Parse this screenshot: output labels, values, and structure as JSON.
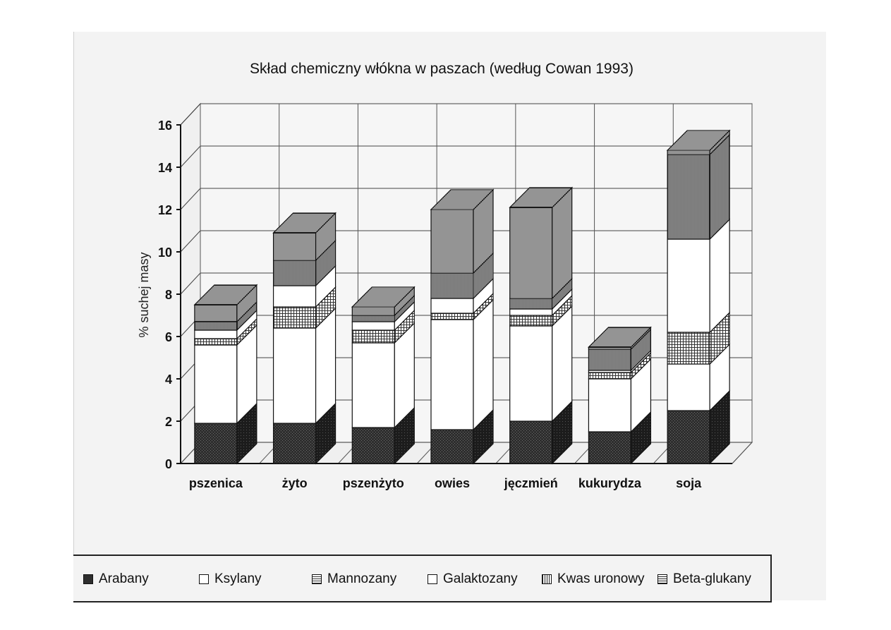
{
  "chart_data": {
    "type": "bar",
    "stacked": true,
    "three_d": true,
    "title": "Skład chemiczny włókna w paszach (według Cowan 1993)",
    "xlabel": "",
    "ylabel": "% suchej masy",
    "ylim": [
      0,
      16
    ],
    "yticks": [
      "0",
      "2",
      "4",
      "6",
      "8",
      "10",
      "12",
      "14",
      "16"
    ],
    "grid": true,
    "legend_position": "bottom",
    "categories": [
      "pszenica",
      "żyto",
      "pszenżyto",
      "owies",
      "jęczmień",
      "kukurydza",
      "soja"
    ],
    "series": [
      {
        "name": "Arabany",
        "values": [
          1.9,
          1.9,
          1.7,
          1.6,
          2.0,
          1.5,
          2.5
        ],
        "color": "#3a3a3a",
        "pattern": "dark"
      },
      {
        "name": "Ksylany",
        "values": [
          3.7,
          4.5,
          4.0,
          5.2,
          4.5,
          2.5,
          2.2
        ],
        "color": "#ffffff",
        "pattern": "plain"
      },
      {
        "name": "Mannozany",
        "values": [
          0.3,
          1.0,
          0.6,
          0.3,
          0.5,
          0.3,
          1.5
        ],
        "color": "#b5b5b5",
        "pattern": "grid"
      },
      {
        "name": "Galaktozany",
        "values": [
          0.4,
          1.0,
          0.4,
          0.7,
          0.3,
          0.1,
          4.4
        ],
        "color": "#ffffff",
        "pattern": "plain"
      },
      {
        "name": "Kwas uronowy",
        "values": [
          0.4,
          1.2,
          0.3,
          1.2,
          0.5,
          1.0,
          4.0
        ],
        "color": "#6a6a6a",
        "pattern": "vertical"
      },
      {
        "name": "Beta-glukany",
        "values": [
          0.8,
          1.3,
          0.4,
          3.0,
          4.3,
          0.1,
          0.2
        ],
        "color": "#9a9a9a",
        "pattern": "horizontal"
      }
    ]
  }
}
